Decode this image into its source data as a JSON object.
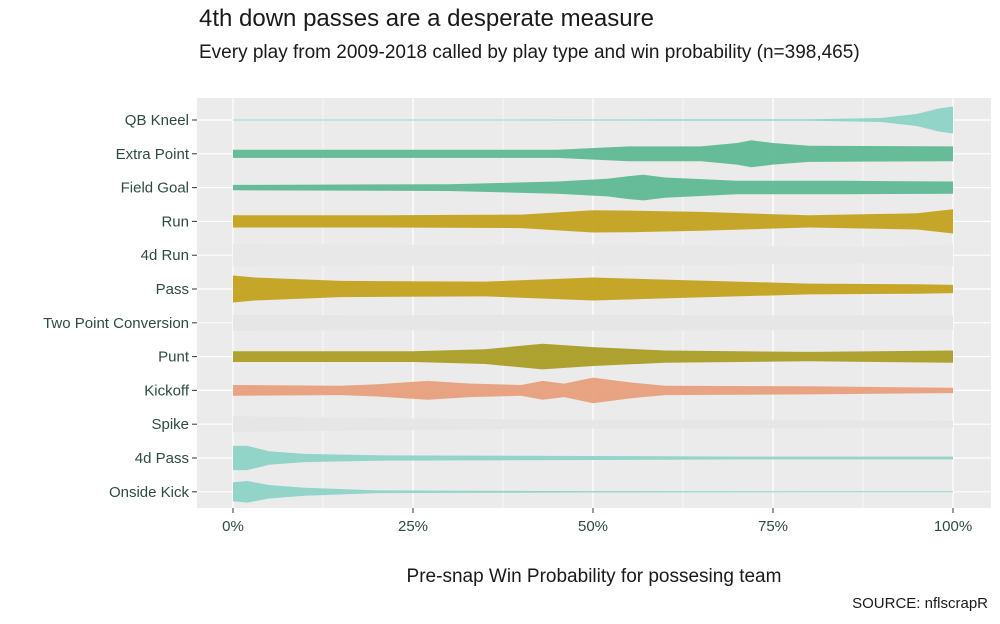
{
  "title": "4th down passes are a desperate measure",
  "subtitle": "Every play from 2009-2018 called by play type and win probability (n=398,465)",
  "source": "SOURCE: nflscrapR",
  "chart_data": {
    "type": "violin",
    "xlabel": "Pre-snap Win Probability for possesing team",
    "xlim": [
      0,
      1
    ],
    "x_ticks": [
      {
        "value": 0,
        "label": "0%"
      },
      {
        "value": 0.25,
        "label": "25%"
      },
      {
        "value": 0.5,
        "label": "50%"
      },
      {
        "value": 0.75,
        "label": "75%"
      },
      {
        "value": 1,
        "label": "100%"
      }
    ],
    "grid": true,
    "categories": [
      "QB Kneel",
      "Extra Point",
      "Field Goal",
      "Run",
      "4d Run",
      "Pass",
      "Two Point Conversion",
      "Punt",
      "Kickoff",
      "Spike",
      "4d Pass",
      "Onside Kick"
    ],
    "series": [
      {
        "category": "QB Kneel",
        "color": "#8ed3c7",
        "density": [
          [
            0,
            0.04
          ],
          [
            0.3,
            0.04
          ],
          [
            0.6,
            0.05
          ],
          [
            0.8,
            0.06
          ],
          [
            0.9,
            0.15
          ],
          [
            0.95,
            0.45
          ],
          [
            0.98,
            0.85
          ],
          [
            1,
            1
          ]
        ]
      },
      {
        "category": "Extra Point",
        "color": "#5fb893",
        "density": [
          [
            0,
            0.3
          ],
          [
            0.25,
            0.3
          ],
          [
            0.45,
            0.3
          ],
          [
            0.55,
            0.55
          ],
          [
            0.65,
            0.55
          ],
          [
            0.7,
            0.8
          ],
          [
            0.72,
            1
          ],
          [
            0.75,
            0.8
          ],
          [
            0.8,
            0.6
          ],
          [
            1,
            0.55
          ]
        ]
      },
      {
        "category": "Field Goal",
        "color": "#5fb893",
        "density": [
          [
            0,
            0.2
          ],
          [
            0.3,
            0.25
          ],
          [
            0.45,
            0.45
          ],
          [
            0.52,
            0.65
          ],
          [
            0.55,
            0.85
          ],
          [
            0.57,
            0.95
          ],
          [
            0.6,
            0.75
          ],
          [
            0.7,
            0.5
          ],
          [
            0.85,
            0.5
          ],
          [
            1,
            0.45
          ]
        ]
      },
      {
        "category": "Run",
        "color": "#c4a21e",
        "density": [
          [
            0,
            0.45
          ],
          [
            0.2,
            0.45
          ],
          [
            0.4,
            0.5
          ],
          [
            0.5,
            0.82
          ],
          [
            0.55,
            0.8
          ],
          [
            0.65,
            0.7
          ],
          [
            0.8,
            0.45
          ],
          [
            0.95,
            0.6
          ],
          [
            1,
            0.9
          ]
        ]
      },
      {
        "category": "4d Run",
        "color": "#e8e8e8",
        "density": [
          [
            0,
            0.85
          ],
          [
            0.1,
            0.8
          ],
          [
            0.3,
            0.75
          ],
          [
            0.5,
            0.8
          ],
          [
            0.7,
            0.7
          ],
          [
            0.9,
            0.6
          ],
          [
            1,
            0.8
          ]
        ]
      },
      {
        "category": "Pass",
        "color": "#c4a21e",
        "density": [
          [
            0,
            1
          ],
          [
            0.03,
            0.85
          ],
          [
            0.15,
            0.6
          ],
          [
            0.35,
            0.55
          ],
          [
            0.5,
            0.85
          ],
          [
            0.6,
            0.7
          ],
          [
            0.8,
            0.4
          ],
          [
            0.95,
            0.35
          ],
          [
            1,
            0.3
          ]
        ]
      },
      {
        "category": "Two Point Conversion",
        "color": "#e6e6e6",
        "density": [
          [
            0,
            0.6
          ],
          [
            0.2,
            0.55
          ],
          [
            0.45,
            0.6
          ],
          [
            0.7,
            0.55
          ],
          [
            1,
            0.55
          ]
        ]
      },
      {
        "category": "Punt",
        "color": "#aa9e25",
        "density": [
          [
            0,
            0.4
          ],
          [
            0.25,
            0.4
          ],
          [
            0.35,
            0.55
          ],
          [
            0.43,
            0.95
          ],
          [
            0.5,
            0.7
          ],
          [
            0.6,
            0.45
          ],
          [
            0.8,
            0.35
          ],
          [
            1,
            0.45
          ]
        ]
      },
      {
        "category": "Kickoff",
        "color": "#e8a07c",
        "density": [
          [
            0,
            0.4
          ],
          [
            0.15,
            0.35
          ],
          [
            0.2,
            0.45
          ],
          [
            0.27,
            0.7
          ],
          [
            0.33,
            0.5
          ],
          [
            0.4,
            0.4
          ],
          [
            0.43,
            0.7
          ],
          [
            0.46,
            0.5
          ],
          [
            0.5,
            0.95
          ],
          [
            0.55,
            0.6
          ],
          [
            0.6,
            0.35
          ],
          [
            0.8,
            0.3
          ],
          [
            1,
            0.2
          ]
        ]
      },
      {
        "category": "Spike",
        "color": "#e6e6e6",
        "density": [
          [
            0,
            0.6
          ],
          [
            0.1,
            0.5
          ],
          [
            0.4,
            0.35
          ],
          [
            0.7,
            0.3
          ],
          [
            1,
            0.25
          ]
        ]
      },
      {
        "category": "4d Pass",
        "color": "#8ed3c7",
        "density": [
          [
            0,
            0.9
          ],
          [
            0.02,
            0.9
          ],
          [
            0.05,
            0.5
          ],
          [
            0.1,
            0.3
          ],
          [
            0.2,
            0.2
          ],
          [
            0.5,
            0.15
          ],
          [
            0.7,
            0.1
          ],
          [
            1,
            0.1
          ]
        ]
      },
      {
        "category": "Onside Kick",
        "color": "#8ed3c7",
        "density": [
          [
            0,
            0.7
          ],
          [
            0.02,
            0.8
          ],
          [
            0.05,
            0.5
          ],
          [
            0.1,
            0.3
          ],
          [
            0.2,
            0.1
          ],
          [
            0.5,
            0.05
          ],
          [
            0.8,
            0.04
          ],
          [
            1,
            0.04
          ]
        ]
      }
    ]
  }
}
